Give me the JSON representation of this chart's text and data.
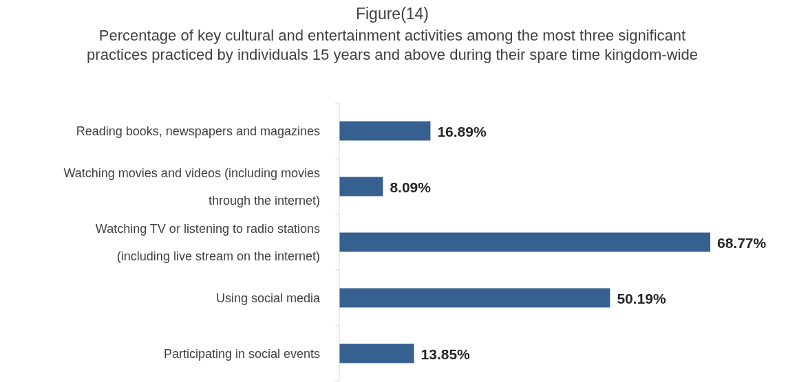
{
  "chart_data": {
    "type": "bar",
    "orientation": "horizontal",
    "title": "Figure(14)",
    "subtitle": "Percentage of key cultural and entertainment activities among the most three significant practices practiced by individuals 15 years and above during their spare time kingdom-wide",
    "categories": [
      "Reading books, newspapers and magazines",
      "Watching movies and videos (including movies through the internet)",
      "Watching TV or listening to radio stations (including live stream on the internet)",
      "Using social media",
      "Participating in social events"
    ],
    "values": [
      16.89,
      8.09,
      68.77,
      50.19,
      13.85
    ],
    "value_labels": [
      "16.89%",
      "8.09%",
      "68.77%",
      "50.19%",
      "13.85%"
    ],
    "color": "#36608f"
  }
}
